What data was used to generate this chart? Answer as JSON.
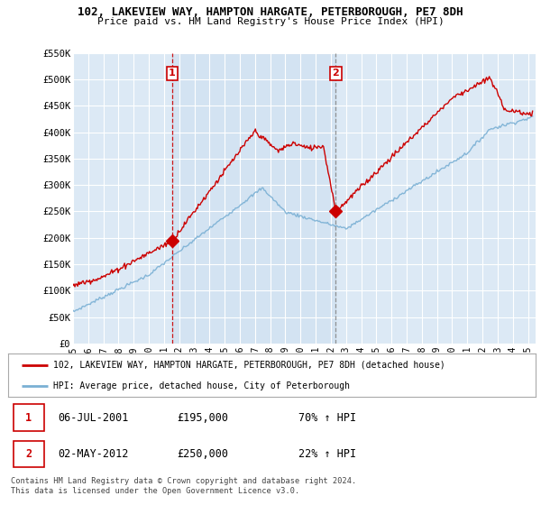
{
  "title": "102, LAKEVIEW WAY, HAMPTON HARGATE, PETERBOROUGH, PE7 8DH",
  "subtitle": "Price paid vs. HM Land Registry's House Price Index (HPI)",
  "ylim": [
    0,
    550000
  ],
  "yticks": [
    0,
    50000,
    100000,
    150000,
    200000,
    250000,
    300000,
    350000,
    400000,
    450000,
    500000,
    550000
  ],
  "ytick_labels": [
    "£0",
    "£50K",
    "£100K",
    "£150K",
    "£200K",
    "£250K",
    "£300K",
    "£350K",
    "£400K",
    "£450K",
    "£500K",
    "£550K"
  ],
  "bg_color": "#dce9f5",
  "bg_color_between": "#cde0f0",
  "grid_color": "#ffffff",
  "red_line_color": "#cc0000",
  "blue_line_color": "#7ab0d4",
  "marker1_date": 2001.54,
  "marker2_date": 2012.33,
  "marker1_price": 195000,
  "marker2_price": 250000,
  "legend_line1": "102, LAKEVIEW WAY, HAMPTON HARGATE, PETERBOROUGH, PE7 8DH (detached house)",
  "legend_line2": "HPI: Average price, detached house, City of Peterborough",
  "table_row1": [
    "1",
    "06-JUL-2001",
    "£195,000",
    "70% ↑ HPI"
  ],
  "table_row2": [
    "2",
    "02-MAY-2012",
    "£250,000",
    "22% ↑ HPI"
  ],
  "footer": "Contains HM Land Registry data © Crown copyright and database right 2024.\nThis data is licensed under the Open Government Licence v3.0.",
  "xmin": 1995,
  "xmax": 2025.5,
  "xticks": [
    1995,
    1996,
    1997,
    1998,
    1999,
    2000,
    2001,
    2002,
    2003,
    2004,
    2005,
    2006,
    2007,
    2008,
    2009,
    2010,
    2011,
    2012,
    2013,
    2014,
    2015,
    2016,
    2017,
    2018,
    2019,
    2020,
    2021,
    2022,
    2023,
    2024,
    2025
  ]
}
